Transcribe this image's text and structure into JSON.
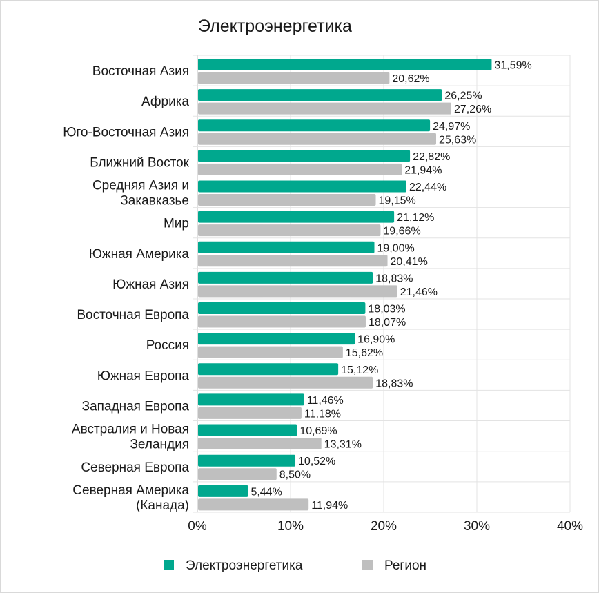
{
  "chart_data": {
    "type": "bar",
    "orientation": "horizontal",
    "title": "Электроэнергетика",
    "xlabel": "",
    "ylabel": "",
    "xlim": [
      0,
      40
    ],
    "x_ticks": [
      "0%",
      "10%",
      "20%",
      "30%",
      "40%"
    ],
    "x_tick_values": [
      0,
      10,
      20,
      30,
      40
    ],
    "grid": true,
    "legend_position": "bottom",
    "categories": [
      [
        "Восточная Азия"
      ],
      [
        "Африка"
      ],
      [
        "Юго-Восточная Азия"
      ],
      [
        "Ближний Восток"
      ],
      [
        "Средняя Азия и",
        "Закавказье"
      ],
      [
        "Мир"
      ],
      [
        "Южная Америка"
      ],
      [
        "Южная Азия"
      ],
      [
        "Восточная Европа"
      ],
      [
        "Россия"
      ],
      [
        "Южная Европа"
      ],
      [
        "Западная Европа"
      ],
      [
        "Австралия и Новая",
        "Зеландия"
      ],
      [
        "Северная Европа"
      ],
      [
        "Северная Америка",
        "(Канада)"
      ]
    ],
    "series": [
      {
        "name": "Электроэнергетика",
        "color": "#00a88e",
        "values": [
          31.59,
          26.25,
          24.97,
          22.82,
          22.44,
          21.12,
          19.0,
          18.83,
          18.03,
          16.9,
          15.12,
          11.46,
          10.69,
          10.52,
          5.44
        ],
        "labels": [
          "31,59%",
          "26,25%",
          "24,97%",
          "22,82%",
          "22,44%",
          "21,12%",
          "19,00%",
          "18,83%",
          "18,03%",
          "16,90%",
          "15,12%",
          "11,46%",
          "10,69%",
          "10,52%",
          "5,44%"
        ]
      },
      {
        "name": "Регион",
        "color": "#bfbfbf",
        "values": [
          20.62,
          27.26,
          25.63,
          21.94,
          19.15,
          19.66,
          20.41,
          21.46,
          18.07,
          15.62,
          18.83,
          11.18,
          13.31,
          8.5,
          11.94
        ],
        "labels": [
          "20,62%",
          "27,26%",
          "25,63%",
          "21,94%",
          "19,15%",
          "19,66%",
          "20,41%",
          "21,46%",
          "18,07%",
          "15,62%",
          "18,83%",
          "11,18%",
          "13,31%",
          "8,50%",
          "11,94%"
        ]
      }
    ]
  }
}
